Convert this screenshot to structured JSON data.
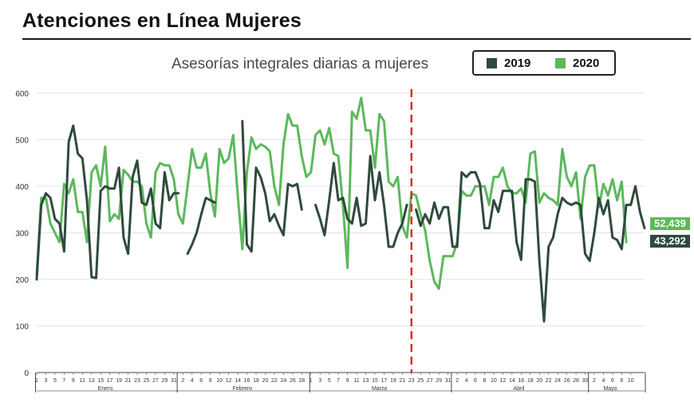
{
  "header": {
    "title": "Atenciones en Línea Mujeres"
  },
  "chart_data": {
    "type": "line",
    "title": "Asesorías integrales diarias a mujeres",
    "ylim": [
      0,
      600
    ],
    "yticks": [
      0,
      100,
      200,
      300,
      400,
      500,
      600
    ],
    "grid": true,
    "legend_position": "top-right",
    "colors": {
      "2019": "#2f4a3d",
      "2020": "#5cb85c",
      "marker": "#d93025"
    },
    "day_labels": [
      "1",
      "3",
      "5",
      "7",
      "9",
      "11",
      "13",
      "15",
      "17",
      "19",
      "21",
      "23",
      "25",
      "27",
      "29",
      "31",
      "2",
      "4",
      "6",
      "8",
      "10",
      "12",
      "14",
      "16",
      "18",
      "20",
      "22",
      "24",
      "26",
      "28",
      "1",
      "3",
      "5",
      "7",
      "9",
      "11",
      "13",
      "15",
      "17",
      "19",
      "21",
      "23",
      "25",
      "27",
      "29",
      "31",
      "2",
      "4",
      "6",
      "8",
      "10",
      "12",
      "14",
      "16",
      "18",
      "20",
      "22",
      "24",
      "26",
      "28",
      "30",
      "2",
      "4",
      "6",
      "8",
      "10"
    ],
    "months": [
      {
        "label": "Enero",
        "start": 1,
        "end": 31
      },
      {
        "label": "Febrero",
        "start": 32,
        "end": 60
      },
      {
        "label": "Marzo",
        "start": 61,
        "end": 91
      },
      {
        "label": "Abril",
        "start": 92,
        "end": 121
      },
      {
        "label": "Mayo",
        "start": 122,
        "end": 131
      }
    ],
    "marker_day": 83,
    "end_labels": {
      "2020": "52,439",
      "2019": "43,292"
    },
    "series": [
      {
        "name": "2019",
        "values": [
          200,
          360,
          385,
          375,
          330,
          320,
          260,
          495,
          530,
          470,
          460,
          370,
          205,
          203,
          390,
          400,
          395,
          395,
          440,
          290,
          255,
          420,
          455,
          365,
          360,
          395,
          320,
          310,
          430,
          370,
          385,
          385,
          null,
          255,
          275,
          300,
          340,
          375,
          370,
          365,
          null,
          null,
          null,
          null,
          null,
          540,
          275,
          260,
          440,
          420,
          385,
          325,
          340,
          315,
          295,
          405,
          400,
          405,
          350,
          null,
          null,
          360,
          330,
          295,
          370,
          450,
          370,
          375,
          330,
          320,
          375,
          315,
          320,
          465,
          370,
          430,
          360,
          270,
          270,
          300,
          320,
          360,
          null,
          350,
          315,
          340,
          320,
          365,
          330,
          355,
          355,
          270,
          270,
          430,
          420,
          430,
          430,
          405,
          310,
          310,
          370,
          345,
          390,
          390,
          390,
          280,
          242,
          415,
          415,
          410,
          240,
          110,
          270,
          290,
          340,
          375,
          365,
          360,
          365,
          360,
          255,
          240,
          300,
          375,
          340,
          370,
          290,
          285,
          265,
          360,
          360,
          400,
          345,
          310
        ]
      },
      {
        "name": "2020",
        "values": [
          210,
          375,
          375,
          320,
          300,
          280,
          405,
          385,
          415,
          345,
          345,
          280,
          430,
          445,
          400,
          485,
          325,
          340,
          330,
          435,
          425,
          410,
          410,
          400,
          320,
          290,
          430,
          450,
          445,
          445,
          415,
          340,
          320,
          400,
          480,
          440,
          440,
          470,
          385,
          335,
          480,
          450,
          460,
          510,
          380,
          265,
          430,
          505,
          480,
          490,
          485,
          475,
          400,
          360,
          490,
          555,
          530,
          530,
          465,
          420,
          430,
          510,
          520,
          490,
          525,
          470,
          465,
          360,
          225,
          560,
          545,
          590,
          520,
          520,
          440,
          555,
          540,
          410,
          400,
          420,
          315,
          290,
          385,
          380,
          340,
          305,
          240,
          195,
          180,
          250,
          250,
          250,
          280,
          390,
          380,
          380,
          400,
          400,
          400,
          360,
          420,
          420,
          440,
          400,
          385,
          385,
          395,
          365,
          470,
          475,
          365,
          385,
          375,
          370,
          360,
          480,
          420,
          400,
          430,
          330,
          420,
          445,
          445,
          355,
          405,
          380,
          415,
          370,
          410,
          280
        ]
      }
    ]
  }
}
